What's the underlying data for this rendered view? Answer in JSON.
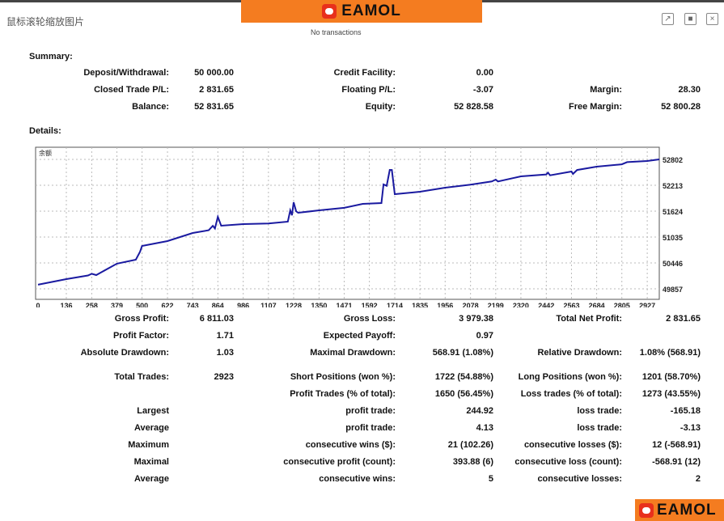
{
  "window": {
    "title": "鼠标滚轮缩放图片",
    "subtitle": "No transactions",
    "brand": "EAMOL"
  },
  "summary": {
    "heading": "Summary:",
    "rows": [
      [
        [
          "Deposit/Withdrawal:",
          "50 000.00"
        ],
        [
          "Credit Facility:",
          "0.00"
        ],
        null
      ],
      [
        [
          "Closed Trade P/L:",
          "2 831.65"
        ],
        [
          "Floating P/L:",
          "-3.07"
        ],
        [
          "Margin:",
          "28.30"
        ]
      ],
      [
        [
          "Balance:",
          "52 831.65"
        ],
        [
          "Equity:",
          "52 828.58"
        ],
        [
          "Free Margin:",
          "52 800.28"
        ]
      ]
    ]
  },
  "details": {
    "heading": "Details:"
  },
  "stats": [
    [
      [
        "Gross Profit:",
        "6 811.03"
      ],
      [
        "Gross Loss:",
        "3 979.38"
      ],
      [
        "Total Net Profit:",
        "2 831.65"
      ]
    ],
    [
      [
        "Profit Factor:",
        "1.71"
      ],
      [
        "Expected Payoff:",
        "0.97"
      ],
      null
    ],
    [
      [
        "Absolute Drawdown:",
        "1.03"
      ],
      [
        "Maximal Drawdown:",
        "568.91 (1.08%)"
      ],
      [
        "Relative Drawdown:",
        "1.08% (568.91)"
      ]
    ],
    [
      [
        "Total Trades:",
        "2923"
      ],
      [
        "Short Positions (won %):",
        "1722 (54.88%)"
      ],
      [
        "Long Positions (won %):",
        "1201 (58.70%)"
      ]
    ],
    [
      null,
      [
        "Profit Trades (% of total):",
        "1650 (56.45%)"
      ],
      [
        "Loss trades (% of total):",
        "1273 (43.55%)"
      ]
    ],
    [
      [
        "Largest",
        ""
      ],
      [
        "profit trade:",
        "244.92"
      ],
      [
        "loss trade:",
        "-165.18"
      ]
    ],
    [
      [
        "Average",
        ""
      ],
      [
        "profit trade:",
        "4.13"
      ],
      [
        "loss trade:",
        "-3.13"
      ]
    ],
    [
      [
        "Maximum",
        ""
      ],
      [
        "consecutive wins ($):",
        "21 (102.26)"
      ],
      [
        "consecutive losses ($):",
        "12 (-568.91)"
      ]
    ],
    [
      [
        "Maximal",
        ""
      ],
      [
        "consecutive profit (count):",
        "393.88 (6)"
      ],
      [
        "consecutive loss (count):",
        "-568.91 (12)"
      ]
    ],
    [
      [
        "Average",
        ""
      ],
      [
        "consecutive wins:",
        "5"
      ],
      [
        "consecutive losses:",
        "2"
      ]
    ]
  ],
  "chart_data": {
    "type": "line",
    "title": "余额",
    "xlabel": "",
    "ylabel": "",
    "x_ticks": [
      0,
      136,
      258,
      379,
      500,
      622,
      743,
      864,
      986,
      1107,
      1228,
      1350,
      1471,
      1592,
      1714,
      1835,
      1956,
      2078,
      2199,
      2320,
      2442,
      2563,
      2684,
      2805,
      2927
    ],
    "y_ticks": [
      49857,
      50446,
      51035,
      51624,
      52213,
      52802
    ],
    "xlim": [
      0,
      2985
    ],
    "ylim": [
      49780,
      53250
    ],
    "grid": true,
    "color": "#1a1aa0",
    "series": [
      {
        "name": "Balance",
        "points": [
          [
            0,
            49950
          ],
          [
            136,
            50078
          ],
          [
            240,
            50160
          ],
          [
            258,
            50200
          ],
          [
            280,
            50170
          ],
          [
            379,
            50430
          ],
          [
            470,
            50520
          ],
          [
            490,
            50700
          ],
          [
            500,
            50833
          ],
          [
            622,
            50943
          ],
          [
            743,
            51127
          ],
          [
            820,
            51190
          ],
          [
            840,
            51290
          ],
          [
            850,
            51230
          ],
          [
            864,
            51495
          ],
          [
            880,
            51293
          ],
          [
            986,
            51330
          ],
          [
            1107,
            51345
          ],
          [
            1200,
            51385
          ],
          [
            1212,
            51640
          ],
          [
            1220,
            51530
          ],
          [
            1228,
            51827
          ],
          [
            1240,
            51620
          ],
          [
            1250,
            51587
          ],
          [
            1350,
            51642
          ],
          [
            1471,
            51700
          ],
          [
            1560,
            51790
          ],
          [
            1650,
            51808
          ],
          [
            1660,
            52232
          ],
          [
            1675,
            52200
          ],
          [
            1690,
            52563
          ],
          [
            1700,
            52560
          ],
          [
            1714,
            52010
          ],
          [
            1835,
            52066
          ],
          [
            1956,
            52158
          ],
          [
            2078,
            52225
          ],
          [
            2180,
            52300
          ],
          [
            2199,
            52342
          ],
          [
            2210,
            52300
          ],
          [
            2320,
            52416
          ],
          [
            2442,
            52460
          ],
          [
            2450,
            52500
          ],
          [
            2460,
            52440
          ],
          [
            2563,
            52526
          ],
          [
            2570,
            52470
          ],
          [
            2590,
            52560
          ],
          [
            2684,
            52636
          ],
          [
            2805,
            52690
          ],
          [
            2830,
            52740
          ],
          [
            2927,
            52766
          ],
          [
            2985,
            52802
          ]
        ]
      }
    ]
  }
}
